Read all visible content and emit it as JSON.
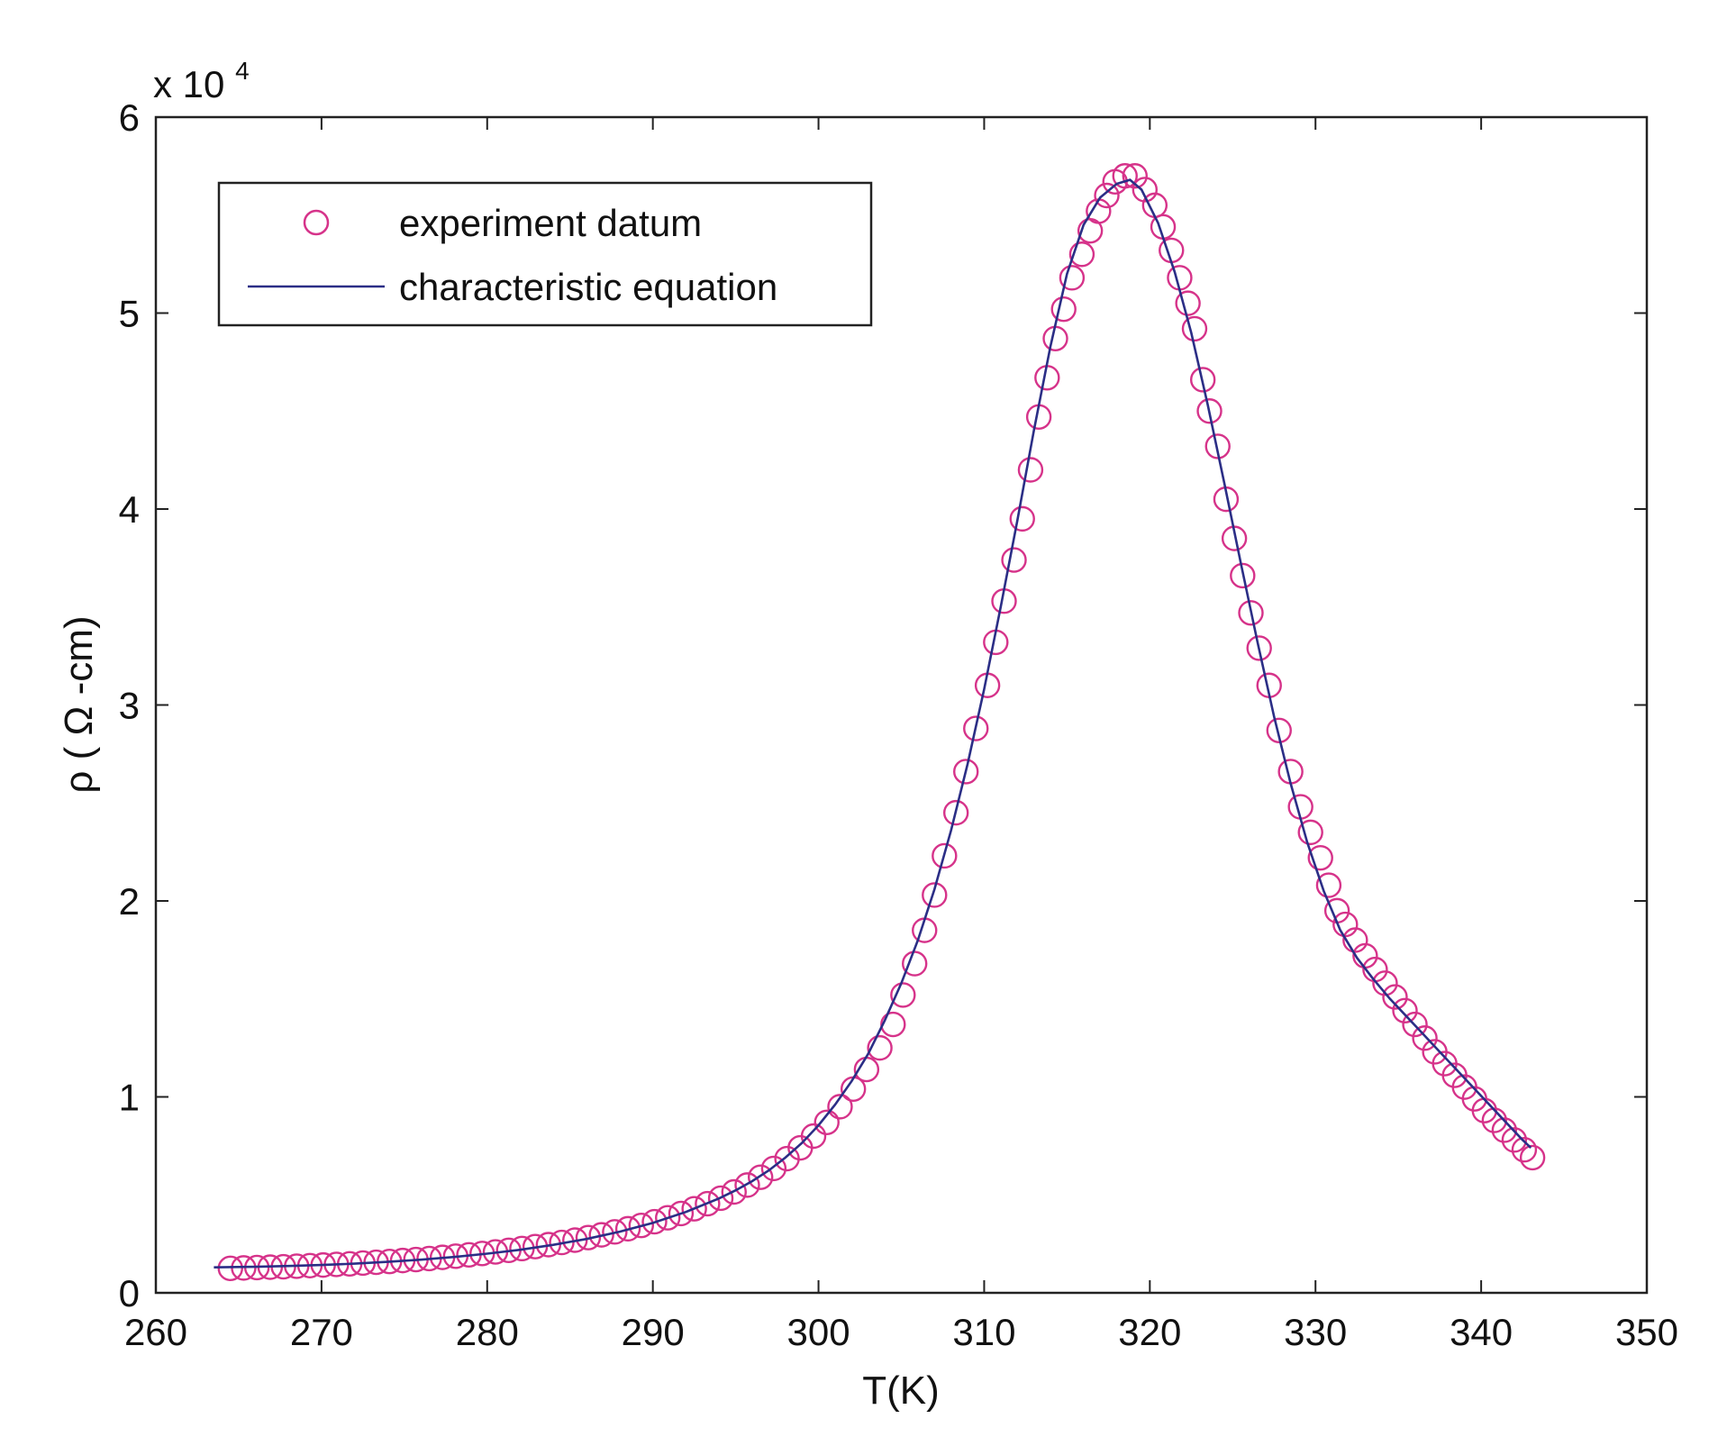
{
  "chart_data": {
    "type": "scatter",
    "xlabel": "T(K)",
    "ylabel": "ρ ( Ω -cm)",
    "y_multiplier_label": "x 10",
    "y_multiplier_exponent": "4",
    "xlim": [
      260,
      350
    ],
    "ylim": [
      0,
      60000
    ],
    "x_ticks": [
      260,
      270,
      280,
      290,
      300,
      310,
      320,
      330,
      340,
      350
    ],
    "x_tick_labels": [
      "260",
      "270",
      "280",
      "290",
      "300",
      "310",
      "320",
      "330",
      "340",
      "350"
    ],
    "y_ticks": [
      0,
      10000,
      20000,
      30000,
      40000,
      50000,
      60000
    ],
    "y_tick_labels": [
      "0",
      "1",
      "2",
      "3",
      "4",
      "5",
      "6"
    ],
    "grid": false,
    "legend_position": "top-left",
    "series": [
      {
        "name": "experiment datum",
        "kind": "markers",
        "marker": "circle",
        "color": "#d6338a",
        "points": [
          [
            264.5,
            1250
          ],
          [
            265.3,
            1270
          ],
          [
            266.1,
            1290
          ],
          [
            266.9,
            1310
          ],
          [
            267.7,
            1330
          ],
          [
            268.5,
            1360
          ],
          [
            269.3,
            1390
          ],
          [
            270.1,
            1420
          ],
          [
            270.9,
            1450
          ],
          [
            271.7,
            1480
          ],
          [
            272.5,
            1520
          ],
          [
            273.3,
            1560
          ],
          [
            274.1,
            1600
          ],
          [
            274.9,
            1650
          ],
          [
            275.7,
            1700
          ],
          [
            276.5,
            1750
          ],
          [
            277.3,
            1810
          ],
          [
            278.1,
            1870
          ],
          [
            278.9,
            1940
          ],
          [
            279.7,
            2010
          ],
          [
            280.5,
            2090
          ],
          [
            281.3,
            2170
          ],
          [
            282.1,
            2260
          ],
          [
            282.9,
            2360
          ],
          [
            283.7,
            2460
          ],
          [
            284.5,
            2570
          ],
          [
            285.3,
            2690
          ],
          [
            286.1,
            2820
          ],
          [
            286.9,
            2960
          ],
          [
            287.7,
            3110
          ],
          [
            288.5,
            3270
          ],
          [
            289.3,
            3440
          ],
          [
            290.1,
            3630
          ],
          [
            290.9,
            3830
          ],
          [
            291.7,
            4050
          ],
          [
            292.5,
            4290
          ],
          [
            293.3,
            4550
          ],
          [
            294.1,
            4830
          ],
          [
            294.9,
            5150
          ],
          [
            295.7,
            5500
          ],
          [
            296.5,
            5900
          ],
          [
            297.3,
            6350
          ],
          [
            298.1,
            6850
          ],
          [
            298.9,
            7400
          ],
          [
            299.7,
            8000
          ],
          [
            300.5,
            8700
          ],
          [
            301.3,
            9500
          ],
          [
            302.1,
            10400
          ],
          [
            302.9,
            11400
          ],
          [
            303.7,
            12500
          ],
          [
            304.5,
            13700
          ],
          [
            305.1,
            15200
          ],
          [
            305.8,
            16800
          ],
          [
            306.4,
            18500
          ],
          [
            307.0,
            20300
          ],
          [
            307.6,
            22300
          ],
          [
            308.3,
            24500
          ],
          [
            308.9,
            26600
          ],
          [
            309.5,
            28800
          ],
          [
            310.2,
            31000
          ],
          [
            310.7,
            33200
          ],
          [
            311.2,
            35300
          ],
          [
            311.8,
            37400
          ],
          [
            312.3,
            39500
          ],
          [
            312.8,
            42000
          ],
          [
            313.3,
            44700
          ],
          [
            313.8,
            46700
          ],
          [
            314.3,
            48700
          ],
          [
            314.8,
            50200
          ],
          [
            315.3,
            51800
          ],
          [
            315.9,
            53000
          ],
          [
            316.4,
            54200
          ],
          [
            316.9,
            55200
          ],
          [
            317.4,
            56000
          ],
          [
            317.9,
            56700
          ],
          [
            318.5,
            57000
          ],
          [
            319.1,
            57000
          ],
          [
            319.7,
            56300
          ],
          [
            320.3,
            55500
          ],
          [
            320.8,
            54400
          ],
          [
            321.3,
            53200
          ],
          [
            321.8,
            51800
          ],
          [
            322.3,
            50500
          ],
          [
            322.7,
            49200
          ],
          [
            323.2,
            46600
          ],
          [
            323.6,
            45000
          ],
          [
            324.1,
            43200
          ],
          [
            324.6,
            40500
          ],
          [
            325.1,
            38500
          ],
          [
            325.6,
            36600
          ],
          [
            326.1,
            34700
          ],
          [
            326.6,
            32900
          ],
          [
            327.2,
            31000
          ],
          [
            327.8,
            28700
          ],
          [
            328.5,
            26600
          ],
          [
            329.1,
            24800
          ],
          [
            329.7,
            23500
          ],
          [
            330.3,
            22200
          ],
          [
            330.8,
            20800
          ],
          [
            331.3,
            19500
          ],
          [
            331.8,
            18800
          ],
          [
            332.4,
            18000
          ],
          [
            333.0,
            17200
          ],
          [
            333.6,
            16500
          ],
          [
            334.2,
            15800
          ],
          [
            334.8,
            15100
          ],
          [
            335.4,
            14400
          ],
          [
            336.0,
            13700
          ],
          [
            336.6,
            13000
          ],
          [
            337.2,
            12300
          ],
          [
            337.8,
            11700
          ],
          [
            338.4,
            11100
          ],
          [
            339.0,
            10500
          ],
          [
            339.6,
            9900
          ],
          [
            340.2,
            9300
          ],
          [
            340.8,
            8800
          ],
          [
            341.4,
            8300
          ],
          [
            342.0,
            7800
          ],
          [
            342.6,
            7300
          ],
          [
            343.1,
            6900
          ]
        ]
      },
      {
        "name": "characteristic equation",
        "kind": "line",
        "color": "#2b2e86",
        "points": [
          [
            263.5,
            1300
          ],
          [
            266,
            1330
          ],
          [
            268,
            1370
          ],
          [
            270,
            1420
          ],
          [
            272,
            1490
          ],
          [
            274,
            1580
          ],
          [
            276,
            1690
          ],
          [
            278,
            1830
          ],
          [
            280,
            2000
          ],
          [
            282,
            2200
          ],
          [
            284,
            2450
          ],
          [
            286,
            2750
          ],
          [
            288,
            3120
          ],
          [
            290,
            3570
          ],
          [
            292,
            4130
          ],
          [
            294,
            4820
          ],
          [
            295,
            5230
          ],
          [
            296,
            5700
          ],
          [
            297,
            6250
          ],
          [
            298,
            6900
          ],
          [
            299,
            7650
          ],
          [
            300,
            8550
          ],
          [
            301,
            9600
          ],
          [
            302,
            10800
          ],
          [
            303,
            12200
          ],
          [
            304,
            13900
          ],
          [
            305,
            15800
          ],
          [
            306,
            18000
          ],
          [
            307,
            20600
          ],
          [
            308,
            23600
          ],
          [
            309,
            27000
          ],
          [
            310,
            30800
          ],
          [
            311,
            35000
          ],
          [
            312,
            39400
          ],
          [
            313,
            44000
          ],
          [
            314,
            48300
          ],
          [
            315,
            52000
          ],
          [
            316,
            54500
          ],
          [
            317,
            55900
          ],
          [
            318,
            56600
          ],
          [
            318.8,
            56800
          ],
          [
            319.5,
            56300
          ],
          [
            320.5,
            54600
          ],
          [
            321.5,
            52100
          ],
          [
            322.5,
            49000
          ],
          [
            323.5,
            45300
          ],
          [
            324.5,
            41300
          ],
          [
            325.5,
            37200
          ],
          [
            326.5,
            33200
          ],
          [
            327.5,
            29400
          ],
          [
            328.5,
            26000
          ],
          [
            329.5,
            23000
          ],
          [
            330.5,
            20500
          ],
          [
            331.5,
            18500
          ],
          [
            332.5,
            17100
          ],
          [
            333.5,
            16000
          ],
          [
            334.5,
            15000
          ],
          [
            335.5,
            14100
          ],
          [
            336.5,
            13200
          ],
          [
            337.5,
            12300
          ],
          [
            338.5,
            11400
          ],
          [
            339.5,
            10500
          ],
          [
            340.5,
            9600
          ],
          [
            341.5,
            8700
          ],
          [
            342.5,
            7800
          ],
          [
            343.0,
            7400
          ]
        ]
      }
    ]
  }
}
